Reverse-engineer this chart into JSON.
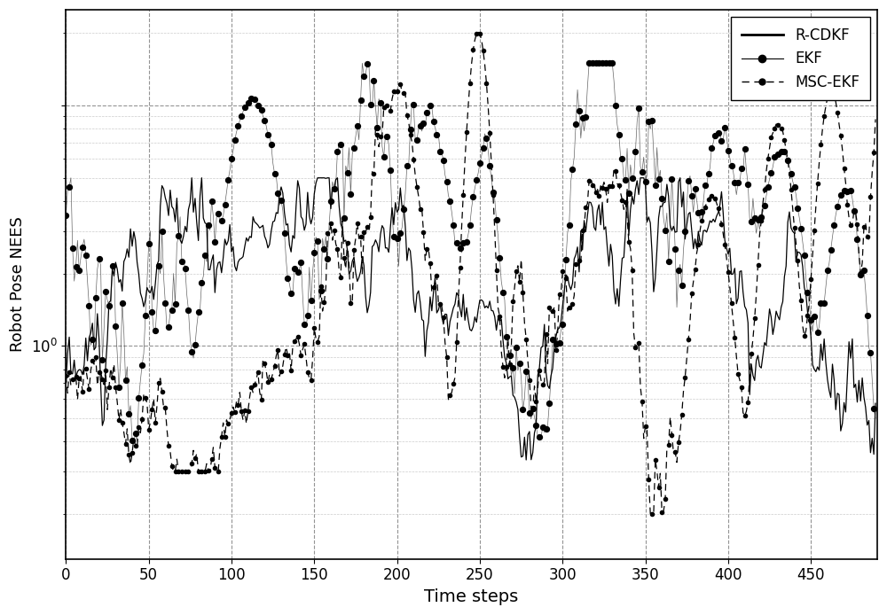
{
  "title": "",
  "xlabel": "Time steps",
  "ylabel": "Robot Pose NEES",
  "xlim": [
    0,
    490
  ],
  "ylim_log": [
    0.13,
    25
  ],
  "xticks": [
    0,
    50,
    100,
    150,
    200,
    250,
    300,
    350,
    400,
    450
  ],
  "legend_labels": [
    "R-CDKF",
    "EKF",
    "MSC-EKF"
  ],
  "figsize": [
    10.0,
    6.94
  ],
  "dpi": 100,
  "background_color": "#ffffff"
}
